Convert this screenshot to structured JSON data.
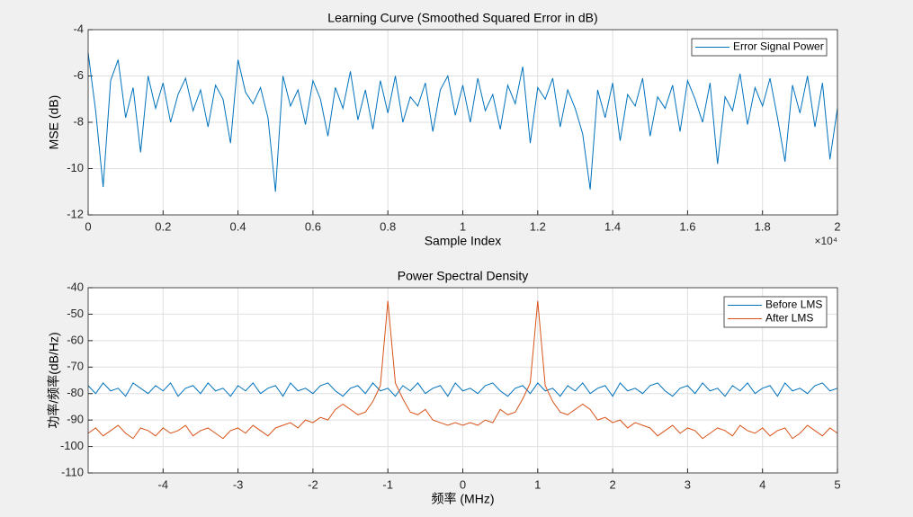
{
  "chart_data": [
    {
      "type": "line",
      "title": "Learning Curve (Smoothed Squared Error in dB)",
      "x_label": "Sample Index",
      "y_label": "MSE (dB)",
      "x_exponent": "×10⁴",
      "x": [
        0,
        200,
        400,
        600,
        800,
        1000,
        1200,
        1400,
        1600,
        1800,
        2000,
        2200,
        2400,
        2600,
        2800,
        3000,
        3200,
        3400,
        3600,
        3800,
        4000,
        4200,
        4400,
        4600,
        4800,
        5000,
        5200,
        5400,
        5600,
        5800,
        6000,
        6200,
        6400,
        6600,
        6800,
        7000,
        7200,
        7400,
        7600,
        7800,
        8000,
        8200,
        8400,
        8600,
        8800,
        9000,
        9200,
        9400,
        9600,
        9800,
        10000,
        10200,
        10400,
        10600,
        10800,
        11000,
        11200,
        11400,
        11600,
        11800,
        12000,
        12200,
        12400,
        12600,
        12800,
        13000,
        13200,
        13400,
        13600,
        13800,
        14000,
        14200,
        14400,
        14600,
        14800,
        15000,
        15200,
        15400,
        15600,
        15800,
        16000,
        16200,
        16400,
        16600,
        16800,
        17000,
        17200,
        17400,
        17600,
        17800,
        18000,
        18200,
        18400,
        18600,
        18800,
        19000,
        19200,
        19400,
        19600,
        19800,
        20000
      ],
      "series": [
        {
          "name": "Error Signal Power",
          "color": "#0072bd",
          "values": [
            -5.0,
            -7.5,
            -10.8,
            -6.2,
            -5.3,
            -7.8,
            -6.5,
            -9.3,
            -6.0,
            -7.4,
            -6.3,
            -8.0,
            -6.8,
            -6.1,
            -7.5,
            -6.6,
            -8.2,
            -6.4,
            -7.0,
            -8.9,
            -5.3,
            -6.7,
            -7.2,
            -6.5,
            -7.8,
            -11.0,
            -6.0,
            -7.3,
            -6.6,
            -8.1,
            -6.2,
            -7.0,
            -8.6,
            -6.5,
            -7.4,
            -5.8,
            -7.9,
            -6.6,
            -8.3,
            -6.2,
            -7.6,
            -6.0,
            -8.0,
            -6.9,
            -7.3,
            -6.3,
            -8.4,
            -6.6,
            -6.0,
            -7.7,
            -6.4,
            -8.0,
            -6.1,
            -7.5,
            -6.8,
            -8.3,
            -6.4,
            -7.2,
            -5.6,
            -8.9,
            -6.5,
            -7.0,
            -6.1,
            -8.2,
            -6.6,
            -7.4,
            -8.5,
            -10.9,
            -6.6,
            -7.8,
            -6.3,
            -8.8,
            -6.8,
            -7.3,
            -6.1,
            -8.6,
            -6.9,
            -7.4,
            -6.4,
            -8.4,
            -6.2,
            -7.0,
            -8.0,
            -6.3,
            -9.8,
            -6.9,
            -7.5,
            -5.9,
            -8.1,
            -6.5,
            -7.3,
            -6.1,
            -7.8,
            -9.7,
            -6.4,
            -7.6,
            -6.0,
            -8.2,
            -6.3,
            -9.6,
            -7.4
          ]
        }
      ],
      "xlim": [
        0,
        20000
      ],
      "ylim": [
        -12,
        -4
      ],
      "xticks": [
        {
          "value": 0,
          "label": "0"
        },
        {
          "value": 2000,
          "label": "0.2"
        },
        {
          "value": 4000,
          "label": "0.4"
        },
        {
          "value": 6000,
          "label": "0.6"
        },
        {
          "value": 8000,
          "label": "0.8"
        },
        {
          "value": 10000,
          "label": "1"
        },
        {
          "value": 12000,
          "label": "1.2"
        },
        {
          "value": 14000,
          "label": "1.4"
        },
        {
          "value": 16000,
          "label": "1.6"
        },
        {
          "value": 18000,
          "label": "1.8"
        },
        {
          "value": 20000,
          "label": "2"
        }
      ],
      "yticks": [
        -12,
        -10,
        -8,
        -6,
        -4
      ],
      "grid": true,
      "legend": "upper right"
    },
    {
      "type": "line",
      "title": "Power Spectral Density",
      "x_label": "频率 (MHz)",
      "y_label": "功率/频率(dB/Hz)",
      "x": [
        -5,
        -4.9,
        -4.8,
        -4.7,
        -4.6,
        -4.5,
        -4.4,
        -4.3,
        -4.2,
        -4.1,
        -4,
        -3.9,
        -3.8,
        -3.7,
        -3.6,
        -3.5,
        -3.4,
        -3.3,
        -3.2,
        -3.1,
        -3,
        -2.9,
        -2.8,
        -2.7,
        -2.6,
        -2.5,
        -2.4,
        -2.3,
        -2.2,
        -2.1,
        -2,
        -1.9,
        -1.8,
        -1.7,
        -1.6,
        -1.5,
        -1.4,
        -1.3,
        -1.2,
        -1.1,
        -1,
        -0.9,
        -0.8,
        -0.7,
        -0.6,
        -0.5,
        -0.4,
        -0.3,
        -0.2,
        -0.1,
        0,
        0.1,
        0.2,
        0.3,
        0.4,
        0.5,
        0.6,
        0.7,
        0.8,
        0.9,
        1,
        1.1,
        1.2,
        1.3,
        1.4,
        1.5,
        1.6,
        1.7,
        1.8,
        1.9,
        2,
        2.1,
        2.2,
        2.3,
        2.4,
        2.5,
        2.6,
        2.7,
        2.8,
        2.9,
        3,
        3.1,
        3.2,
        3.3,
        3.4,
        3.5,
        3.6,
        3.7,
        3.8,
        3.9,
        4,
        4.1,
        4.2,
        4.3,
        4.4,
        4.5,
        4.6,
        4.7,
        4.8,
        4.9,
        5
      ],
      "series": [
        {
          "name": "Before LMS",
          "color": "#0072bd",
          "values": [
            -77,
            -80,
            -76,
            -79,
            -78,
            -81,
            -76,
            -78,
            -80,
            -77,
            -79,
            -76,
            -81,
            -78,
            -77,
            -80,
            -76,
            -79,
            -78,
            -81,
            -77,
            -79,
            -76,
            -80,
            -78,
            -77,
            -81,
            -76,
            -79,
            -78,
            -80,
            -77,
            -76,
            -79,
            -81,
            -78,
            -77,
            -80,
            -76,
            -79,
            -78,
            -81,
            -77,
            -79,
            -76,
            -80,
            -78,
            -77,
            -81,
            -76,
            -79,
            -78,
            -80,
            -77,
            -76,
            -79,
            -81,
            -78,
            -77,
            -80,
            -76,
            -79,
            -78,
            -81,
            -77,
            -79,
            -76,
            -80,
            -78,
            -77,
            -81,
            -76,
            -79,
            -78,
            -80,
            -77,
            -76,
            -79,
            -81,
            -78,
            -77,
            -80,
            -76,
            -79,
            -78,
            -81,
            -77,
            -79,
            -76,
            -80,
            -78,
            -77,
            -81,
            -76,
            -79,
            -78,
            -80,
            -77,
            -76,
            -79,
            -78
          ]
        },
        {
          "name": "After LMS",
          "color": "#d95319",
          "values": [
            -95,
            -93,
            -96,
            -94,
            -92,
            -95,
            -97,
            -93,
            -94,
            -96,
            -93,
            -95,
            -94,
            -92,
            -96,
            -94,
            -93,
            -95,
            -97,
            -94,
            -93,
            -95,
            -92,
            -94,
            -96,
            -93,
            -92,
            -91,
            -93,
            -90,
            -91,
            -89,
            -90,
            -86,
            -84,
            -86,
            -88,
            -87,
            -83,
            -77,
            -45,
            -76,
            -82,
            -87,
            -88,
            -86,
            -90,
            -91,
            -92,
            -91,
            -92,
            -91,
            -92,
            -90,
            -91,
            -86,
            -88,
            -87,
            -82,
            -76,
            -45,
            -77,
            -83,
            -87,
            -88,
            -86,
            -84,
            -86,
            -90,
            -89,
            -91,
            -90,
            -93,
            -91,
            -92,
            -93,
            -96,
            -94,
            -92,
            -95,
            -93,
            -94,
            -97,
            -95,
            -93,
            -94,
            -96,
            -92,
            -94,
            -95,
            -93,
            -96,
            -94,
            -93,
            -97,
            -95,
            -92,
            -94,
            -96,
            -93,
            -95
          ]
        }
      ],
      "xlim": [
        -5,
        5
      ],
      "ylim": [
        -110,
        -40
      ],
      "xticks": [
        -4,
        -3,
        -2,
        -1,
        0,
        1,
        2,
        3,
        4,
        5
      ],
      "yticks": [
        -110,
        -100,
        -90,
        -80,
        -70,
        -60,
        -50,
        -40
      ],
      "grid": true,
      "legend": "upper right"
    }
  ]
}
